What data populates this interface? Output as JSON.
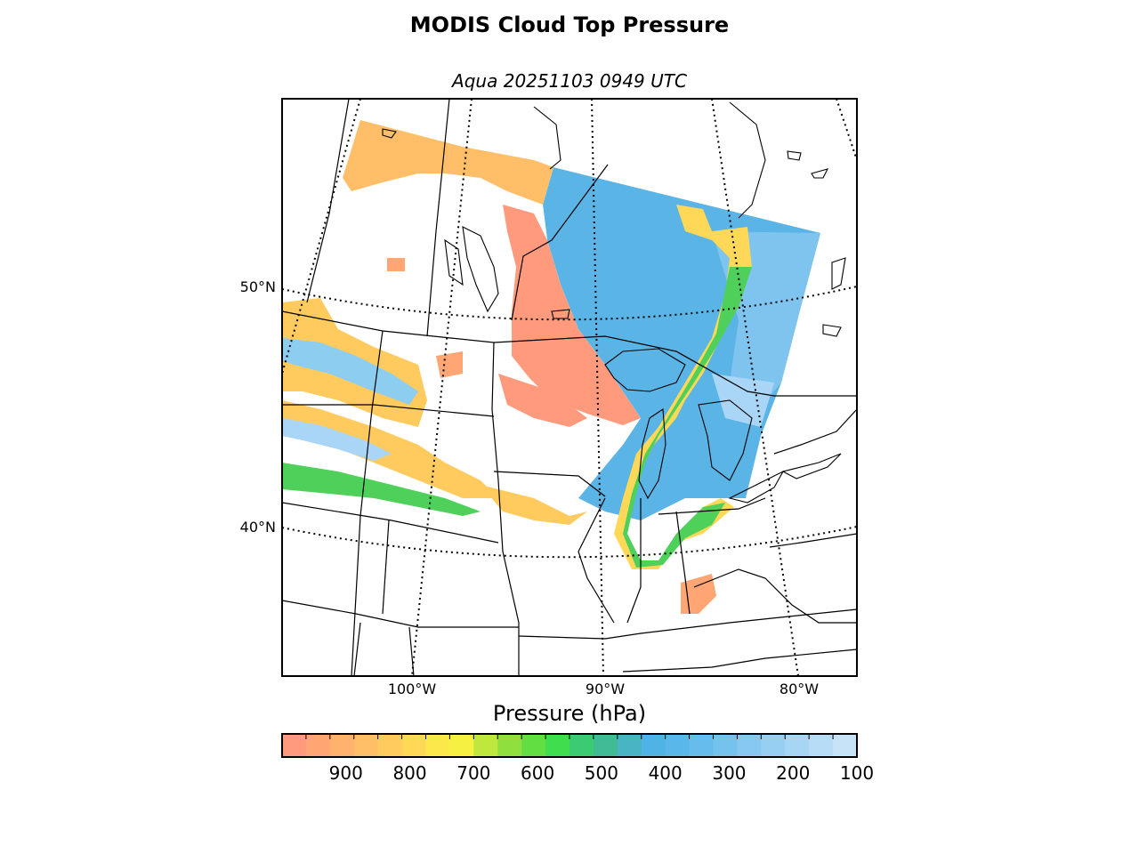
{
  "header": {
    "title": "MODIS Cloud Top Pressure",
    "subtitle": "Aqua 20251103 0949 UTC"
  },
  "map": {
    "latitude_labels": [
      "50°N",
      "40°N"
    ],
    "longitude_labels": [
      "100°W",
      "90°W",
      "80°W"
    ]
  },
  "colorbar": {
    "label": "Pressure (hPa)",
    "tick_labels": [
      "900",
      "800",
      "700",
      "600",
      "500",
      "400",
      "300",
      "200",
      "100"
    ],
    "range": [
      1000,
      100
    ],
    "colors": [
      "#ff9a7c",
      "#ffa674",
      "#ffb26e",
      "#ffbe67",
      "#ffcb5f",
      "#ffd857",
      "#fde84c",
      "#f6f042",
      "#bfe83e",
      "#8fe03e",
      "#62de42",
      "#3ede4e",
      "#3ccb72",
      "#3fbb95",
      "#49b4c4",
      "#4fb3e6",
      "#5ab7ea",
      "#66bcec",
      "#76c2ee",
      "#86c8f0",
      "#96cff2",
      "#a6d6f4",
      "#b6dcf6",
      "#c6e3f8"
    ]
  }
}
